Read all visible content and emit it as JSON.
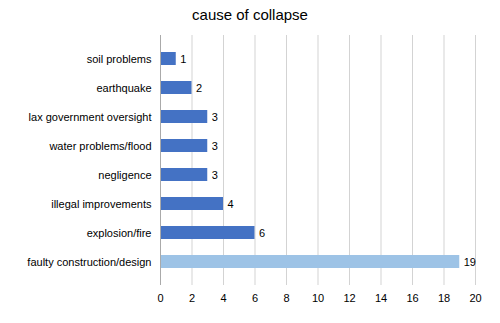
{
  "chart_data": {
    "type": "bar",
    "title": "cause of collapse",
    "orientation": "horizontal",
    "categories": [
      "faulty construction/design",
      "explosion/fire",
      "illegal improvements",
      "negligence",
      "water problems/flood",
      "lax government oversight",
      "earthquake",
      "soil problems"
    ],
    "values": [
      19,
      6,
      4,
      3,
      3,
      3,
      2,
      1
    ],
    "colors": [
      "#9DC3E6",
      "#4472C4",
      "#4472C4",
      "#4472C4",
      "#4472C4",
      "#4472C4",
      "#4472C4",
      "#4472C4"
    ],
    "xlim": [
      0,
      20
    ],
    "xticks": [
      0,
      2,
      4,
      6,
      8,
      10,
      12,
      14,
      16,
      18,
      20
    ],
    "grid": true,
    "data_labels": true
  }
}
